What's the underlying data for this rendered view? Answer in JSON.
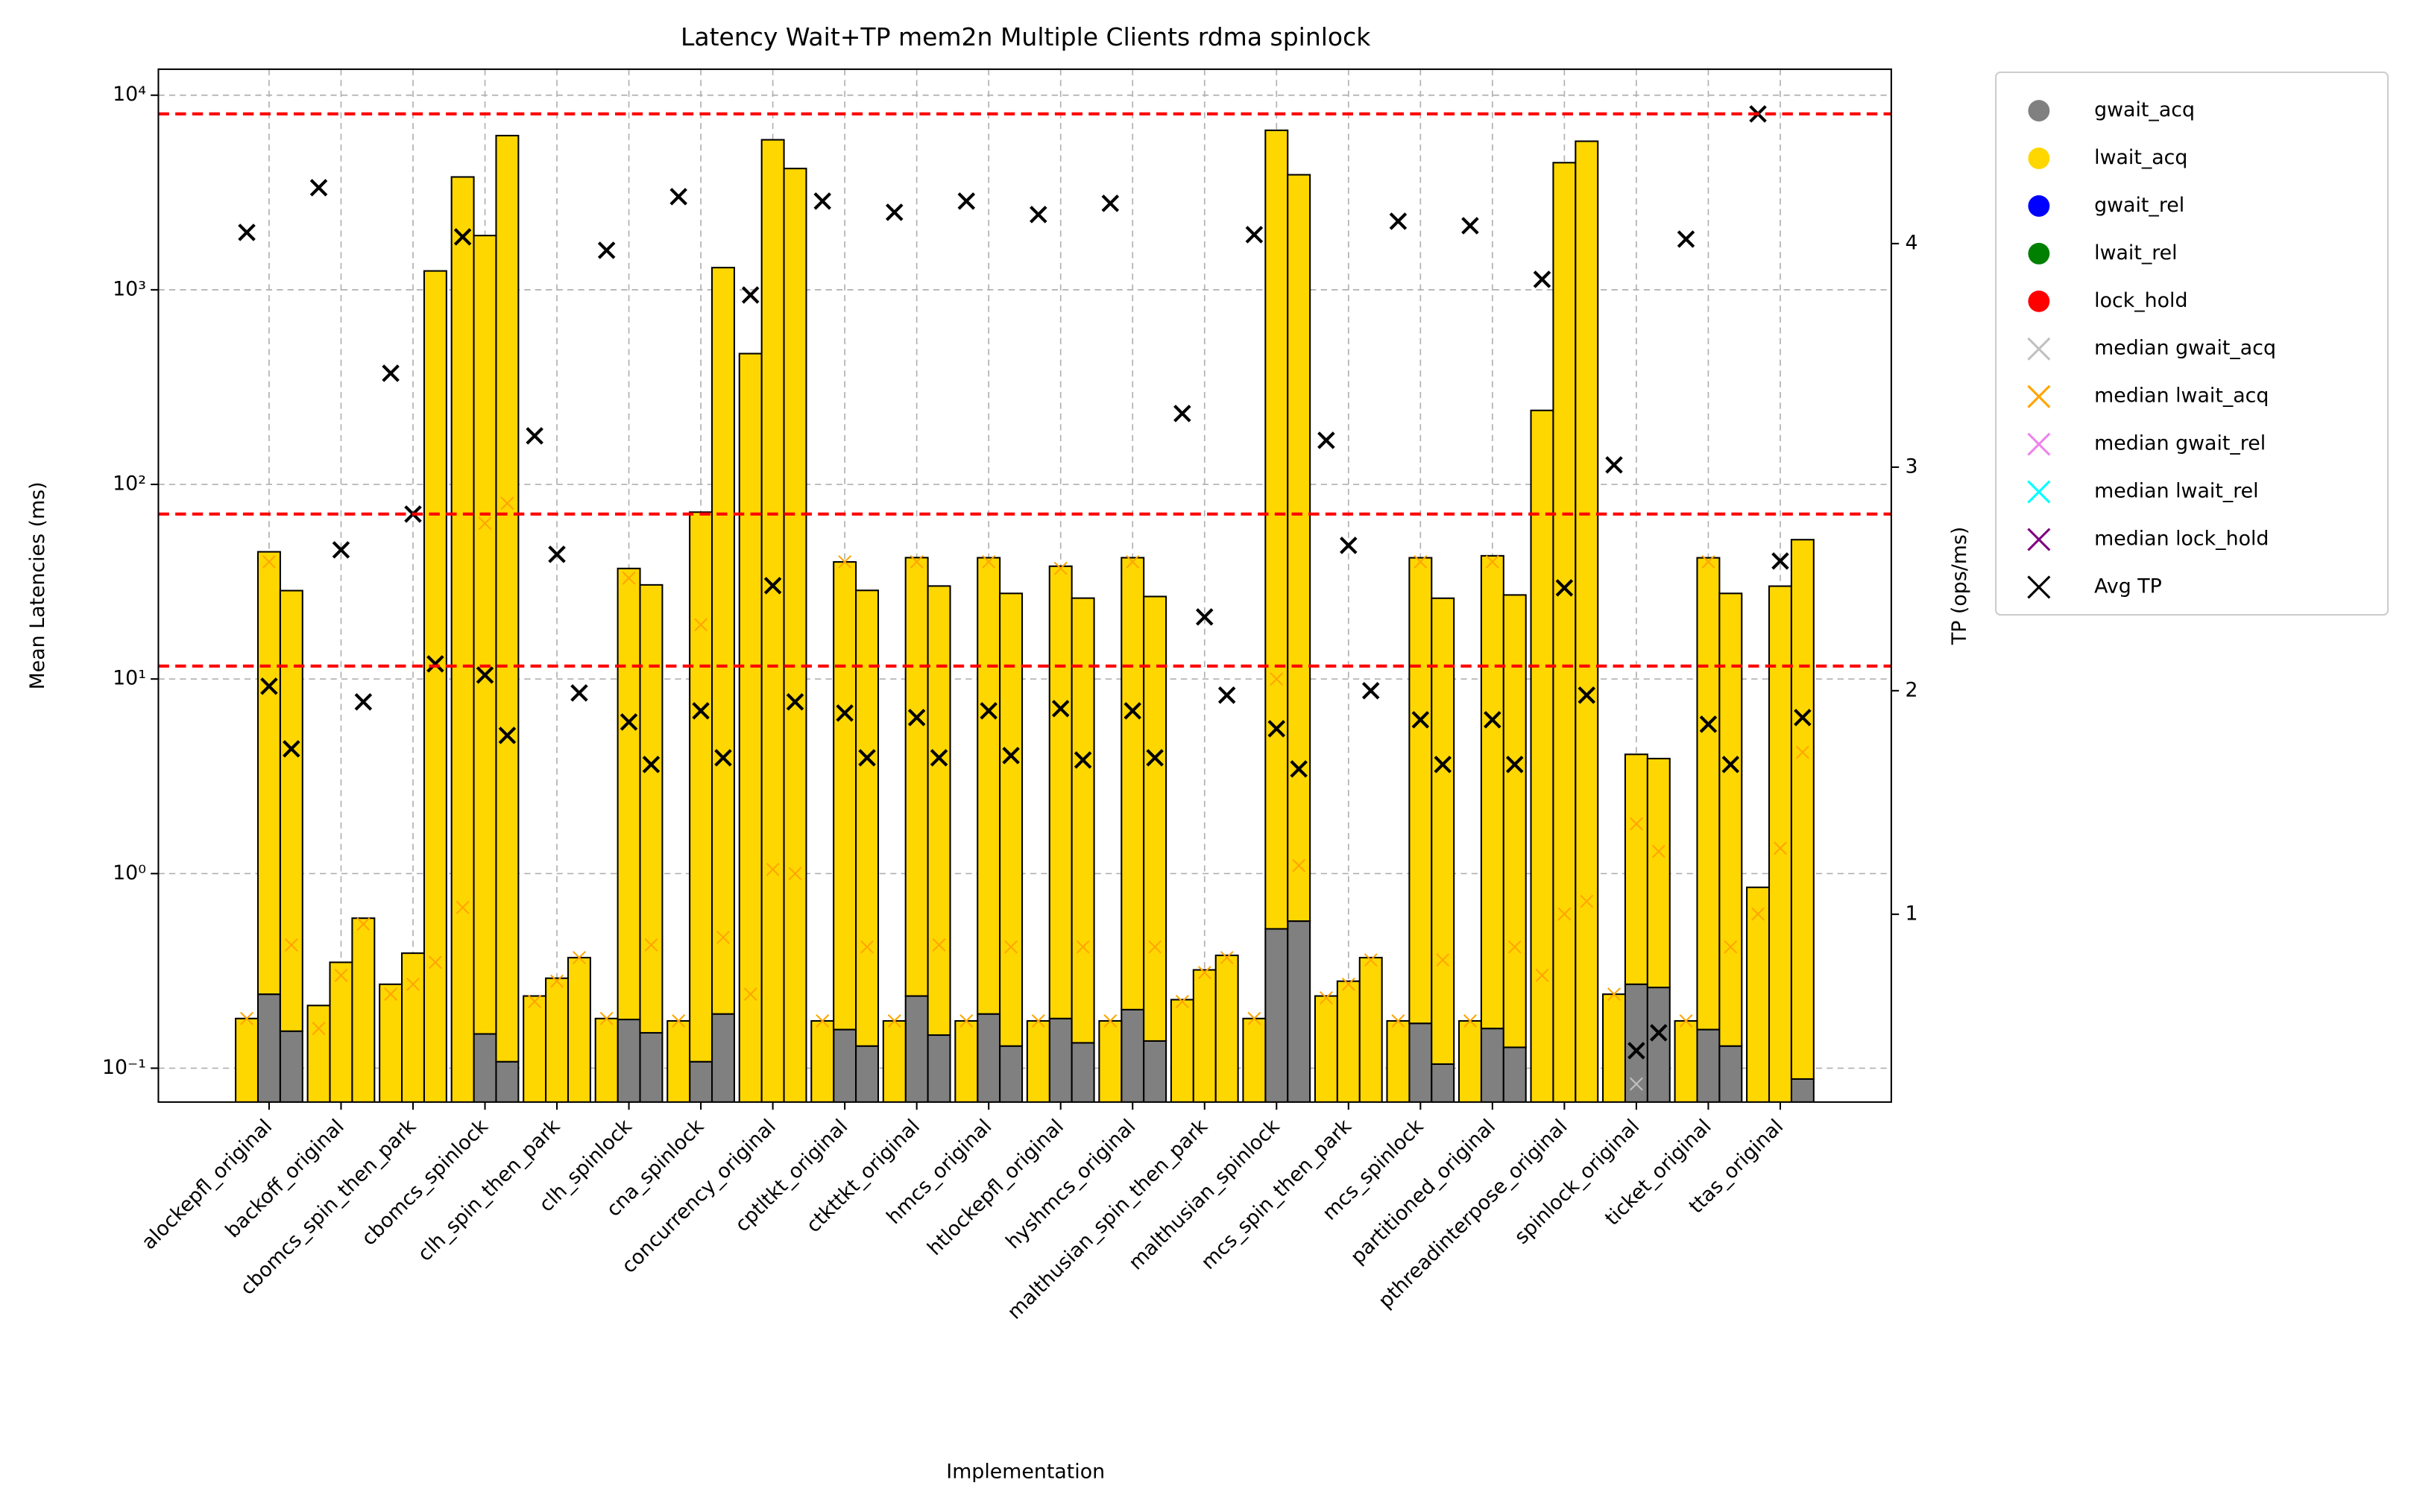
{
  "chart_data": {
    "type": "bar",
    "title": "Latency Wait+TP mem2n Multiple Clients rdma spinlock",
    "xlabel": "Implementation",
    "ylabel": "Mean Latencies (ms)",
    "y2label": "TP (ops/ms)",
    "log_scale": true,
    "grid": true,
    "legend": "outside right",
    "categories": [
      "alockepfl_original",
      "backoff_original",
      "cbomcs_spin_then_park",
      "cbomcs_spinlock",
      "clh_spin_then_park",
      "clh_spinlock",
      "cna_spinlock",
      "concurrency_original",
      "cptltkt_original",
      "ctkttkt_original",
      "hmcs_original",
      "htlockepfl_original",
      "hyshmcs_original",
      "malthusian_spin_then_park",
      "malthusian_spinlock",
      "mcs_spin_then_park",
      "mcs_spinlock",
      "partitioned_original",
      "pthreadinterpose_original",
      "spinlock_original",
      "ticket_original",
      "ttas_original"
    ],
    "ylim": [
      0.067,
      13600
    ],
    "yticks": [
      {
        "value": 0.1,
        "label": "10⁻¹"
      },
      {
        "value": 1,
        "label": "10⁰"
      },
      {
        "value": 10,
        "label": "10¹"
      },
      {
        "value": 100,
        "label": "10²"
      },
      {
        "value": 1000,
        "label": "10³"
      },
      {
        "value": 10000,
        "label": "10⁴"
      }
    ],
    "y2lim": [
      0.16,
      4.78
    ],
    "y2ticks": [
      1,
      2,
      3,
      4
    ],
    "reference_lines": {
      "axis": "y2",
      "color": "#ff0000",
      "values": [
        4.58,
        2.79,
        2.11
      ]
    },
    "series": [
      {
        "name": "gwait_acq",
        "color": "#808080",
        "marker": "o",
        "values": [
          [
            null,
            0.24,
            0.155
          ],
          [
            null,
            null,
            null
          ],
          [
            null,
            null,
            null
          ],
          [
            null,
            0.15,
            0.108
          ],
          [
            null,
            null,
            null
          ],
          [
            null,
            0.178,
            0.152
          ],
          [
            null,
            0.108,
            0.19
          ],
          [
            null,
            null,
            null
          ],
          [
            null,
            0.158,
            0.13
          ],
          [
            null,
            0.235,
            0.148
          ],
          [
            null,
            0.19,
            0.13
          ],
          [
            null,
            0.18,
            0.135
          ],
          [
            null,
            0.2,
            0.138
          ],
          [
            null,
            null,
            null
          ],
          [
            null,
            0.52,
            0.57
          ],
          [
            null,
            null,
            null
          ],
          [
            null,
            0.17,
            0.105
          ],
          [
            null,
            0.16,
            0.128
          ],
          [
            null,
            null,
            null
          ],
          [
            null,
            0.27,
            0.26
          ],
          [
            null,
            0.158,
            0.13
          ],
          [
            null,
            null,
            0.088
          ]
        ]
      },
      {
        "name": "lwait_acq",
        "color": "#ffd700",
        "marker": "o",
        "values": [
          [
            0.18,
            44.8,
            28.3
          ],
          [
            0.21,
            0.35,
            0.59
          ],
          [
            0.27,
            0.39,
            1250
          ],
          [
            3800,
            1900,
            6200
          ],
          [
            0.235,
            0.29,
            0.37
          ],
          [
            0.18,
            36.8,
            30.3
          ],
          [
            0.175,
            71.9,
            1300
          ],
          [
            470,
            5900,
            4200
          ],
          [
            0.175,
            39.8,
            28.4
          ],
          [
            0.175,
            41.8,
            29.9
          ],
          [
            0.175,
            41.8,
            27.4
          ],
          [
            0.175,
            37.8,
            25.9
          ],
          [
            0.175,
            41.8,
            26.4
          ],
          [
            0.225,
            0.32,
            0.38
          ],
          [
            0.18,
            6600,
            3900
          ],
          [
            0.235,
            0.28,
            0.37
          ],
          [
            0.175,
            41.8,
            25.9
          ],
          [
            0.175,
            42.8,
            26.9
          ],
          [
            240,
            4500,
            5800
          ],
          [
            0.24,
            3.83,
            3.64
          ],
          [
            0.175,
            41.8,
            27.4
          ],
          [
            0.85,
            30,
            51.9
          ]
        ]
      },
      {
        "name": "gwait_rel",
        "color": "#0000ff",
        "marker": "o"
      },
      {
        "name": "lwait_rel",
        "color": "#008000",
        "marker": "o"
      },
      {
        "name": "lock_hold",
        "color": "#ff0000",
        "marker": "o"
      },
      {
        "name": "median gwait_acq",
        "color": "#c0c0c0",
        "marker": "x",
        "values": [
          [
            null,
            null,
            null
          ],
          [
            null,
            null,
            null
          ],
          [
            null,
            null,
            null
          ],
          [
            null,
            null,
            null
          ],
          [
            null,
            null,
            null
          ],
          [
            null,
            null,
            null
          ],
          [
            null,
            null,
            null
          ],
          [
            null,
            null,
            null
          ],
          [
            null,
            null,
            null
          ],
          [
            null,
            null,
            null
          ],
          [
            null,
            null,
            null
          ],
          [
            null,
            null,
            null
          ],
          [
            null,
            null,
            null
          ],
          [
            null,
            null,
            null
          ],
          [
            null,
            null,
            null
          ],
          [
            null,
            null,
            null
          ],
          [
            null,
            null,
            null
          ],
          [
            null,
            null,
            null
          ],
          [
            null,
            null,
            null
          ],
          [
            null,
            0.083,
            null
          ],
          [
            null,
            null,
            null
          ],
          [
            null,
            null,
            null
          ]
        ]
      },
      {
        "name": "median lwait_acq",
        "color": "#ffa500",
        "marker": "x",
        "values": [
          [
            0.18,
            40,
            0.43
          ],
          [
            0.16,
            0.3,
            0.55
          ],
          [
            0.24,
            0.27,
            0.35
          ],
          [
            0.67,
            63,
            80
          ],
          [
            0.22,
            0.28,
            0.37
          ],
          [
            0.18,
            33,
            0.43
          ],
          [
            0.175,
            19,
            0.47
          ],
          [
            0.24,
            1.05,
            1.0
          ],
          [
            0.175,
            40,
            0.42
          ],
          [
            0.175,
            40,
            0.43
          ],
          [
            0.175,
            40,
            0.42
          ],
          [
            0.175,
            37,
            0.42
          ],
          [
            0.175,
            40,
            0.42
          ],
          [
            0.22,
            0.31,
            0.37
          ],
          [
            0.18,
            10,
            1.1
          ],
          [
            0.23,
            0.27,
            0.36
          ],
          [
            0.175,
            40,
            0.36
          ],
          [
            0.175,
            40,
            0.42
          ],
          [
            0.3,
            0.62,
            0.72
          ],
          [
            0.24,
            1.8,
            1.3
          ],
          [
            0.175,
            40,
            0.42
          ],
          [
            0.62,
            1.35,
            4.2
          ]
        ]
      },
      {
        "name": "median gwait_rel",
        "color": "#ee82ee",
        "marker": "x"
      },
      {
        "name": "median lwait_rel",
        "color": "#00ffff",
        "marker": "x"
      },
      {
        "name": "median lock_hold",
        "color": "#800080",
        "marker": "x"
      },
      {
        "name": "Avg TP",
        "color": "#000000",
        "marker": "x",
        "axis": "y2",
        "values": [
          [
            4.05,
            2.02,
            1.74
          ],
          [
            4.25,
            2.63,
            1.95
          ],
          [
            3.42,
            2.79,
            2.12
          ],
          [
            4.03,
            2.07,
            1.8
          ],
          [
            3.14,
            2.61,
            1.99
          ],
          [
            3.97,
            1.86,
            1.67
          ],
          [
            4.21,
            1.91,
            1.7
          ],
          [
            3.77,
            2.47,
            1.95
          ],
          [
            4.19,
            1.9,
            1.7
          ],
          [
            4.14,
            1.88,
            1.7
          ],
          [
            4.19,
            1.91,
            1.71
          ],
          [
            4.13,
            1.92,
            1.69
          ],
          [
            4.18,
            1.91,
            1.7
          ],
          [
            3.24,
            2.33,
            1.98
          ],
          [
            4.04,
            1.83,
            1.65
          ],
          [
            3.12,
            2.65,
            2.0
          ],
          [
            4.1,
            1.87,
            1.67
          ],
          [
            4.08,
            1.87,
            1.67
          ],
          [
            3.84,
            2.46,
            1.98
          ],
          [
            3.01,
            0.39,
            0.47
          ],
          [
            4.02,
            1.85,
            1.67
          ],
          [
            4.58,
            2.58,
            1.88
          ]
        ]
      }
    ]
  }
}
